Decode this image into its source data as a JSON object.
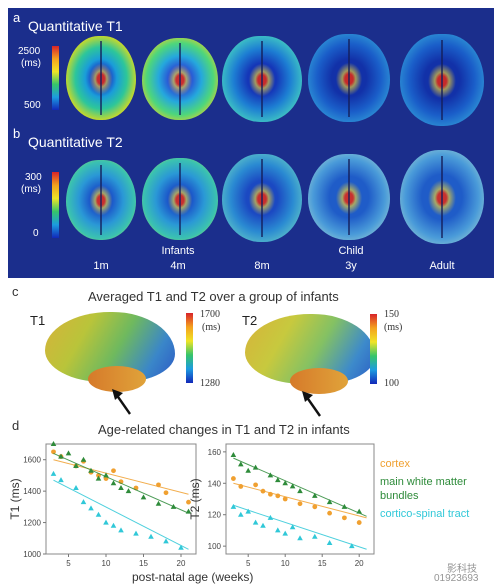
{
  "panel_a": {
    "letter": "a",
    "title": "Quantitative T1",
    "colorbar": {
      "max": "2500",
      "unit": "(ms)",
      "min": "500"
    }
  },
  "panel_b": {
    "letter": "b",
    "title": "Quantitative T2",
    "colorbar": {
      "max": "300",
      "unit": "(ms)",
      "min": "0"
    }
  },
  "ages": [
    "1m",
    "4m",
    "8m",
    "3y",
    "Adult"
  ],
  "groups": {
    "infants": "Infants",
    "child": "Child"
  },
  "panel_c": {
    "letter": "c",
    "title": "Averaged T1 and T2 over a group of infants",
    "t1": {
      "label": "T1",
      "max": "1700",
      "unit": "(ms)",
      "min": "1280"
    },
    "t2": {
      "label": "T2",
      "max": "150",
      "unit": "(ms)",
      "min": "100"
    }
  },
  "panel_d": {
    "letter": "d",
    "title": "Age-related changes in T1 and T2 in infants",
    "xlabel": "post-natal age (weeks)",
    "legend": [
      {
        "label": "cortex",
        "color": "#f0a030"
      },
      {
        "label": "main white matter",
        "color": "#2e8b3a"
      },
      {
        "label": "bundles",
        "color": "#2e8b3a"
      },
      {
        "label": "cortico-spinal tract",
        "color": "#30c8d8"
      }
    ]
  },
  "watermark": {
    "line1": "影科技",
    "line2": "01923693"
  },
  "chart_data": [
    {
      "type": "scatter",
      "title": "",
      "xlabel": "post-natal age (weeks)",
      "ylabel": "T1 (ms)",
      "xlim": [
        2,
        22
      ],
      "ylim": [
        1000,
        1700
      ],
      "xticks": [
        5,
        10,
        15,
        20
      ],
      "yticks": [
        1000,
        1200,
        1400,
        1600
      ],
      "series": [
        {
          "name": "cortex",
          "color": "#f0a030",
          "marker": "circle",
          "x": [
            3,
            4,
            6,
            7,
            8,
            9,
            10,
            11,
            12,
            14,
            17,
            18,
            21
          ],
          "y": [
            1650,
            1620,
            1560,
            1590,
            1520,
            1500,
            1480,
            1530,
            1460,
            1420,
            1440,
            1390,
            1330
          ],
          "trend": [
            [
              3,
              1600
            ],
            [
              21,
              1380
            ]
          ]
        },
        {
          "name": "main white matter bundles",
          "color": "#2e8b3a",
          "marker": "triangle",
          "x": [
            3,
            4,
            5,
            6,
            7,
            8,
            9,
            10,
            11,
            12,
            13,
            15,
            17,
            19,
            21
          ],
          "y": [
            1700,
            1620,
            1640,
            1560,
            1600,
            1530,
            1480,
            1500,
            1450,
            1420,
            1400,
            1360,
            1320,
            1300,
            1270
          ],
          "trend": [
            [
              3,
              1640
            ],
            [
              21,
              1260
            ]
          ]
        },
        {
          "name": "cortico-spinal tract",
          "color": "#30c8d8",
          "marker": "triangle",
          "x": [
            3,
            4,
            6,
            7,
            8,
            9,
            10,
            11,
            12,
            14,
            16,
            18,
            20
          ],
          "y": [
            1510,
            1470,
            1420,
            1330,
            1290,
            1250,
            1200,
            1180,
            1150,
            1130,
            1110,
            1080,
            1040
          ],
          "trend": [
            [
              3,
              1470
            ],
            [
              21,
              1030
            ]
          ]
        }
      ]
    },
    {
      "type": "scatter",
      "title": "",
      "xlabel": "post-natal age (weeks)",
      "ylabel": "T2 (ms)",
      "xlim": [
        2,
        22
      ],
      "ylim": [
        95,
        165
      ],
      "xticks": [
        5,
        10,
        15,
        20
      ],
      "yticks": [
        100,
        120,
        140,
        160
      ],
      "series": [
        {
          "name": "cortex",
          "color": "#f0a030",
          "marker": "circle",
          "x": [
            3,
            4,
            6,
            7,
            8,
            9,
            10,
            12,
            14,
            16,
            18,
            20
          ],
          "y": [
            143,
            138,
            139,
            135,
            133,
            132,
            130,
            127,
            125,
            121,
            118,
            115
          ],
          "trend": [
            [
              3,
              140
            ],
            [
              21,
              118
            ]
          ]
        },
        {
          "name": "main white matter bundles",
          "color": "#2e8b3a",
          "marker": "triangle",
          "x": [
            3,
            4,
            5,
            6,
            8,
            9,
            10,
            11,
            12,
            14,
            16,
            18,
            20
          ],
          "y": [
            158,
            152,
            148,
            150,
            145,
            142,
            140,
            138,
            135,
            132,
            128,
            125,
            122
          ],
          "trend": [
            [
              3,
              156
            ],
            [
              21,
              119
            ]
          ]
        },
        {
          "name": "cortico-spinal tract",
          "color": "#30c8d8",
          "marker": "triangle",
          "x": [
            3,
            4,
            5,
            6,
            7,
            8,
            9,
            10,
            11,
            12,
            14,
            16,
            19
          ],
          "y": [
            125,
            120,
            122,
            115,
            113,
            118,
            110,
            108,
            112,
            105,
            106,
            102,
            100
          ],
          "trend": [
            [
              3,
              126
            ],
            [
              21,
              98
            ]
          ]
        }
      ]
    }
  ]
}
